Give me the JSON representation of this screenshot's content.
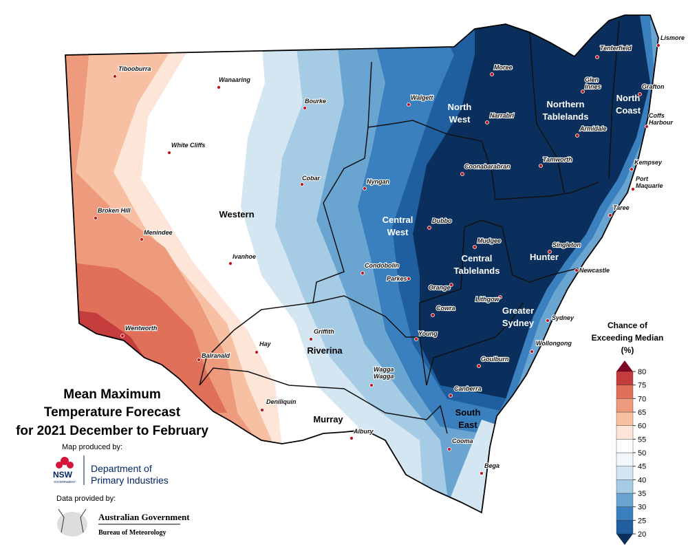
{
  "title": {
    "lines": [
      "Mean Maximum",
      "Temperature Forecast",
      "for 2021 December to February"
    ]
  },
  "regions": [
    {
      "lines": [
        "North",
        "West"
      ]
    },
    {
      "lines": [
        "Northern",
        "Tablelands"
      ]
    },
    {
      "lines": [
        "North",
        "Coast"
      ]
    },
    {
      "lines": [
        "Central",
        "West"
      ]
    },
    {
      "lines": [
        "Western"
      ]
    },
    {
      "lines": [
        "Central",
        "Tablelands"
      ]
    },
    {
      "lines": [
        "Hunter"
      ]
    },
    {
      "lines": [
        "Greater",
        "Sydney"
      ]
    },
    {
      "lines": [
        "Riverina"
      ]
    },
    {
      "lines": [
        "Murray"
      ]
    },
    {
      "lines": [
        "South",
        "East"
      ]
    }
  ],
  "towns": [
    {
      "lines": [
        "Tibooburra"
      ]
    },
    {
      "lines": [
        "Wanaaring"
      ]
    },
    {
      "lines": [
        "Bourke"
      ]
    },
    {
      "lines": [
        "White Cliffs"
      ]
    },
    {
      "lines": [
        "Cobar"
      ]
    },
    {
      "lines": [
        "Nyngan"
      ]
    },
    {
      "lines": [
        "Walgett"
      ]
    },
    {
      "lines": [
        "Moree"
      ]
    },
    {
      "lines": [
        "Narrabri"
      ]
    },
    {
      "lines": [
        "Tenterfield"
      ]
    },
    {
      "lines": [
        "Lismore"
      ]
    },
    {
      "lines": [
        "Glen",
        "Innes"
      ]
    },
    {
      "lines": [
        "Grafton"
      ]
    },
    {
      "lines": [
        "Coffs",
        "Harbour"
      ]
    },
    {
      "lines": [
        "Armidale"
      ]
    },
    {
      "lines": [
        "Coonabarabran"
      ]
    },
    {
      "lines": [
        "Tamworth"
      ]
    },
    {
      "lines": [
        "Kempsey"
      ]
    },
    {
      "lines": [
        "Port",
        "Maquarie"
      ]
    },
    {
      "lines": [
        "Taree"
      ]
    },
    {
      "lines": [
        "Broken Hill"
      ]
    },
    {
      "lines": [
        "Menindee"
      ]
    },
    {
      "lines": [
        "Dubbo"
      ]
    },
    {
      "lines": [
        "Mudgee"
      ]
    },
    {
      "lines": [
        "Singleton"
      ]
    },
    {
      "lines": [
        "Ivanhoe"
      ]
    },
    {
      "lines": [
        "Condobolin"
      ]
    },
    {
      "lines": [
        "Parkes"
      ]
    },
    {
      "lines": [
        "Orange"
      ]
    },
    {
      "lines": [
        "Newcastle"
      ]
    },
    {
      "lines": [
        "Lithgow"
      ]
    },
    {
      "lines": [
        "Cowra"
      ]
    },
    {
      "lines": [
        "Sydney"
      ]
    },
    {
      "lines": [
        "Wentworth"
      ]
    },
    {
      "lines": [
        "Hay"
      ]
    },
    {
      "lines": [
        "Griffith"
      ]
    },
    {
      "lines": [
        "Young"
      ]
    },
    {
      "lines": [
        "Wollongong"
      ]
    },
    {
      "lines": [
        "Balranald"
      ]
    },
    {
      "lines": [
        "Goulburn"
      ]
    },
    {
      "lines": [
        "Wagga",
        "Wagga"
      ]
    },
    {
      "lines": [
        "Canberra"
      ]
    },
    {
      "lines": [
        "Deniliquin"
      ]
    },
    {
      "lines": [
        "Albury"
      ]
    },
    {
      "lines": [
        "Cooma"
      ]
    },
    {
      "lines": [
        "Bega"
      ]
    }
  ],
  "legend": {
    "title": [
      "Chance of",
      "Exceeding Median",
      "(%)"
    ],
    "ticks": [
      20,
      25,
      30,
      35,
      40,
      45,
      50,
      55,
      60,
      65,
      70,
      75,
      80
    ],
    "colors": [
      "#1f5fa0",
      "#3a7fbe",
      "#6aa5d2",
      "#a6cbe4",
      "#d4e6f2",
      "#f2f7fb",
      "#ffffff",
      "#fde5d8",
      "#f7c0a2",
      "#ee9a7c",
      "#e0705a",
      "#c43c3c"
    ],
    "under_color": "#0a2f5c",
    "over_color": "#7a0822"
  },
  "credits": {
    "map_by": "Map produced by:",
    "nsw": "NSW",
    "nsw_sub": "GOVERNMENT",
    "dpi": [
      "Department of",
      "Primary Industries"
    ],
    "data_by": "Data provided by:",
    "ag": "Australian Government",
    "bom": "Bureau of Meteorology"
  }
}
